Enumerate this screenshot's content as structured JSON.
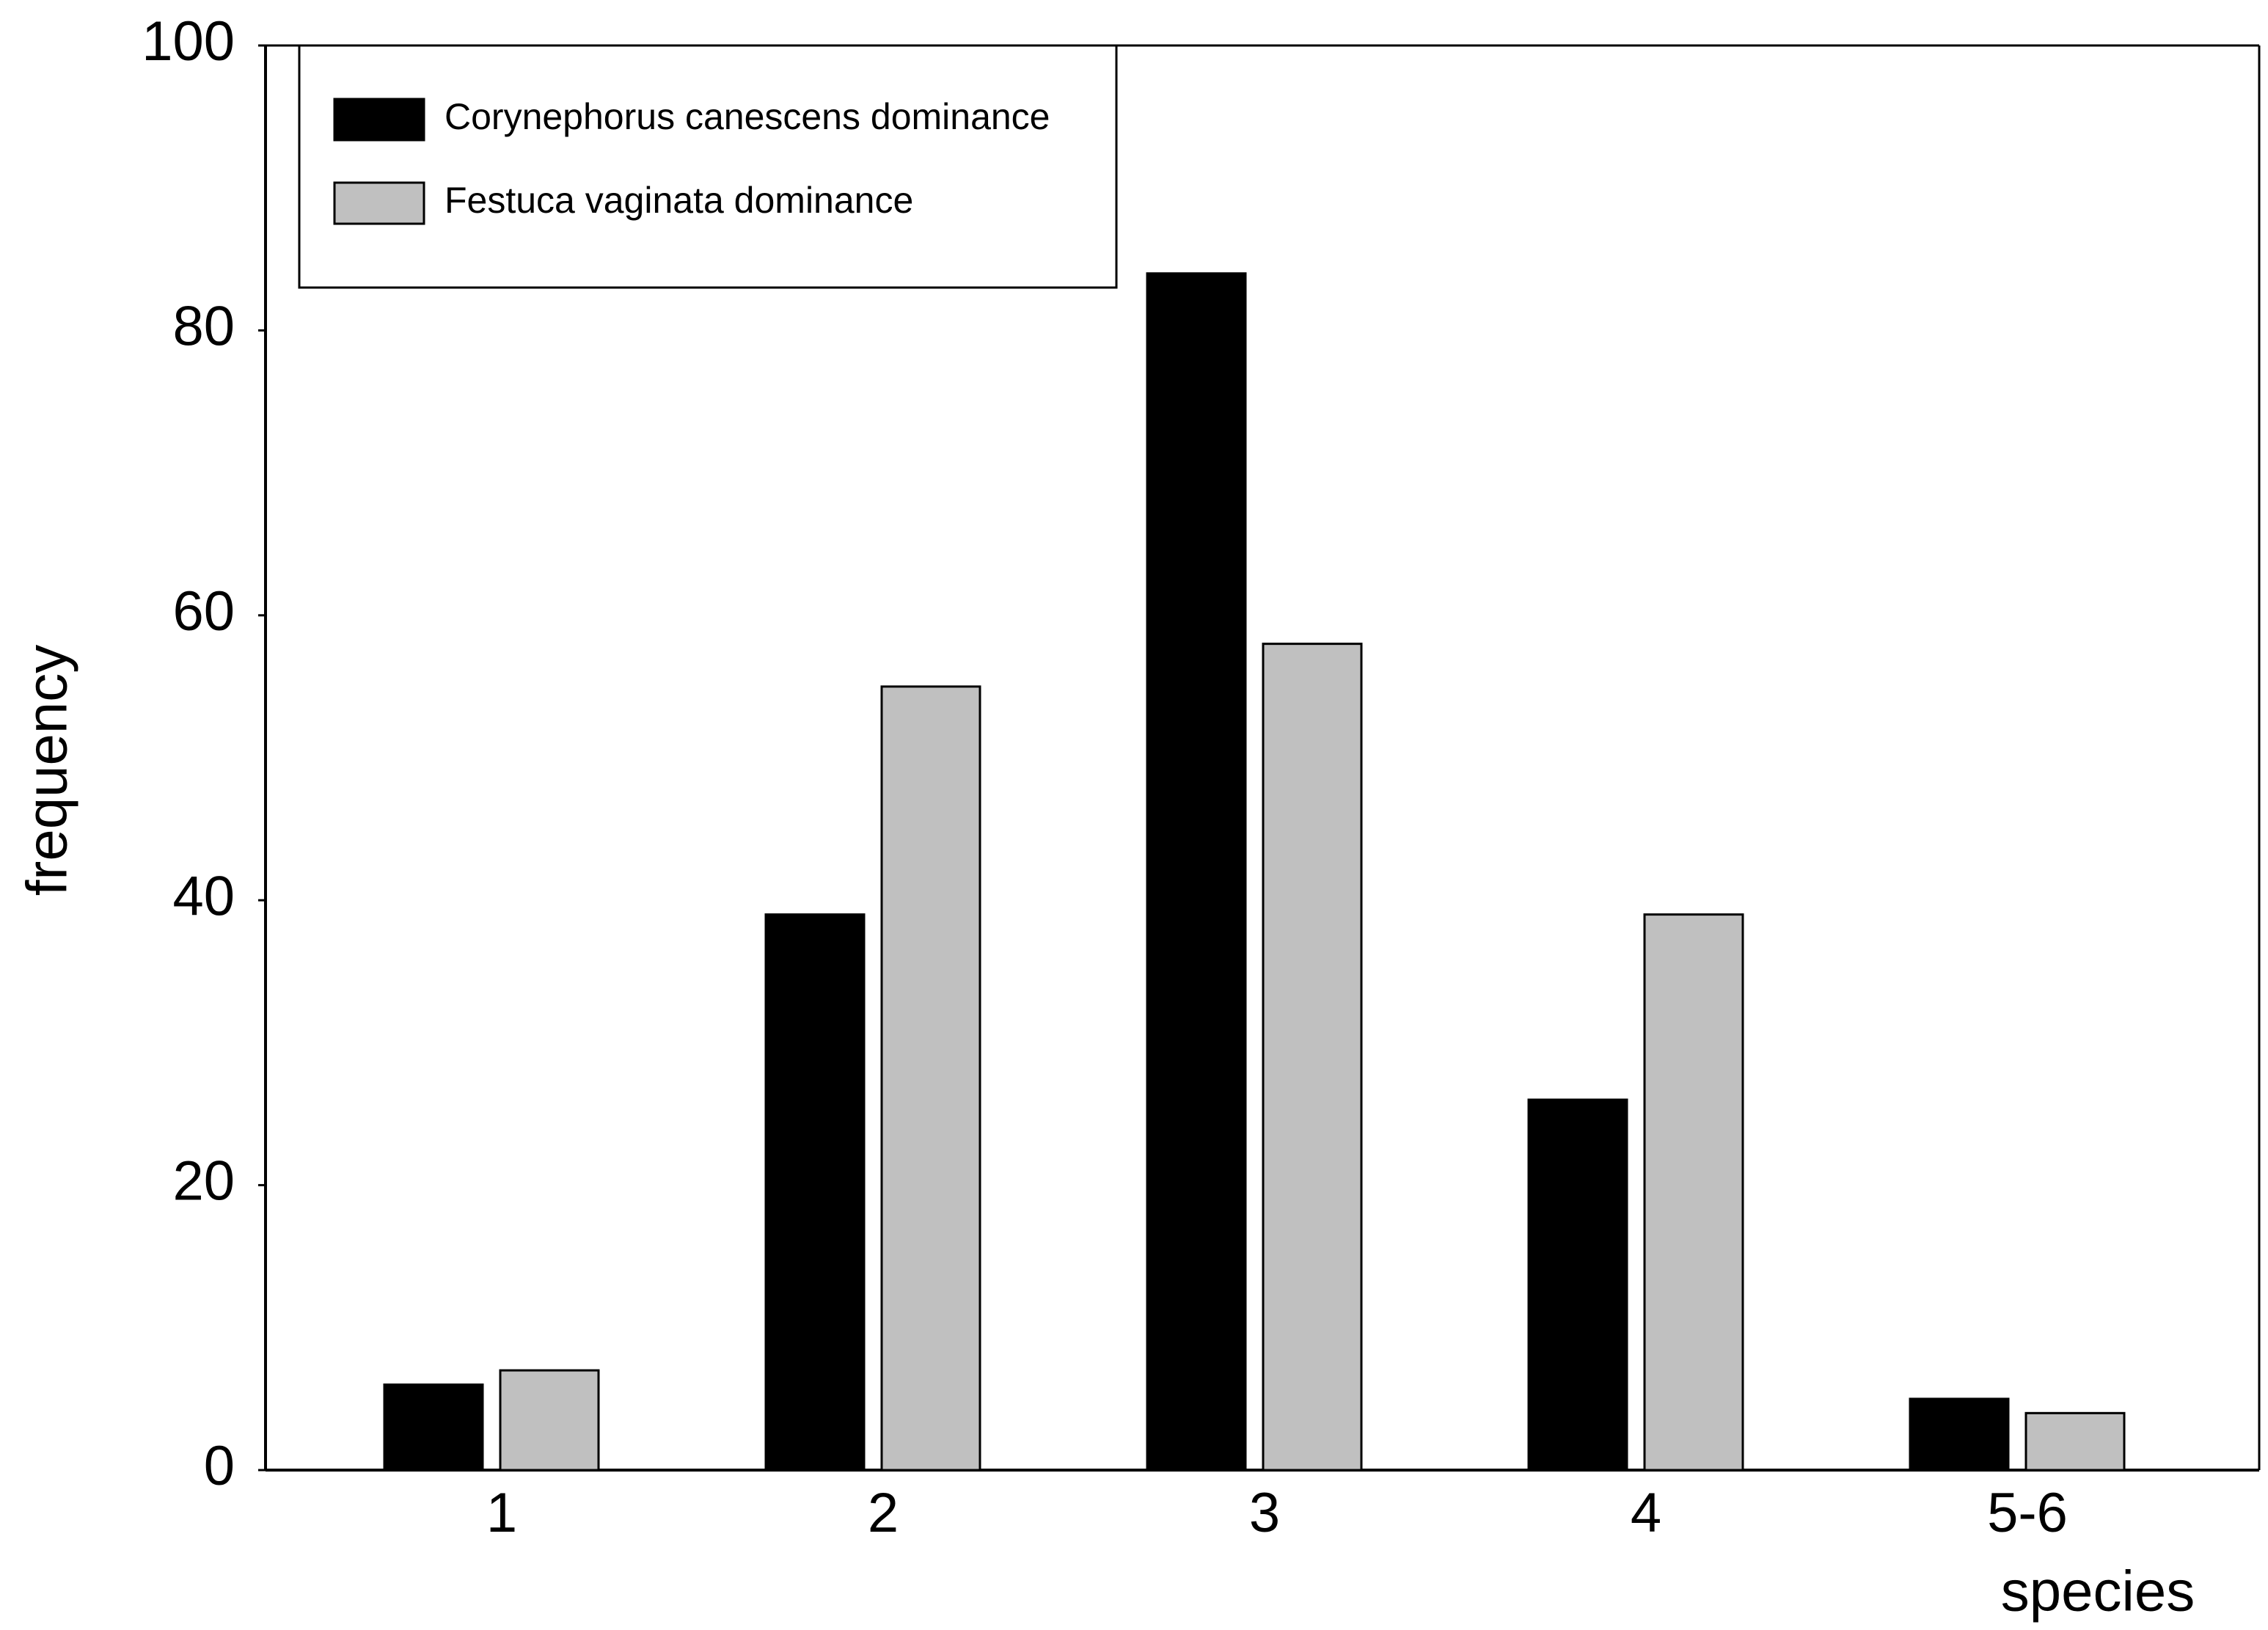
{
  "chart_data": {
    "type": "bar",
    "categories": [
      "1",
      "2",
      "3",
      "4",
      "5-6"
    ],
    "series": [
      {
        "name": "Corynephorus canescens dominance",
        "color": "#000000",
        "values": [
          6,
          39,
          84,
          26,
          5
        ]
      },
      {
        "name": "Festuca vaginata dominance",
        "color": "#c0c0c0",
        "values": [
          7,
          55,
          58,
          39,
          4
        ]
      }
    ],
    "x_label": "species",
    "y_label": "frequency",
    "ylim": [
      0,
      100
    ],
    "yticks": [
      0,
      20,
      40,
      60,
      80,
      100
    ],
    "grid": false,
    "legend": "upper left"
  }
}
